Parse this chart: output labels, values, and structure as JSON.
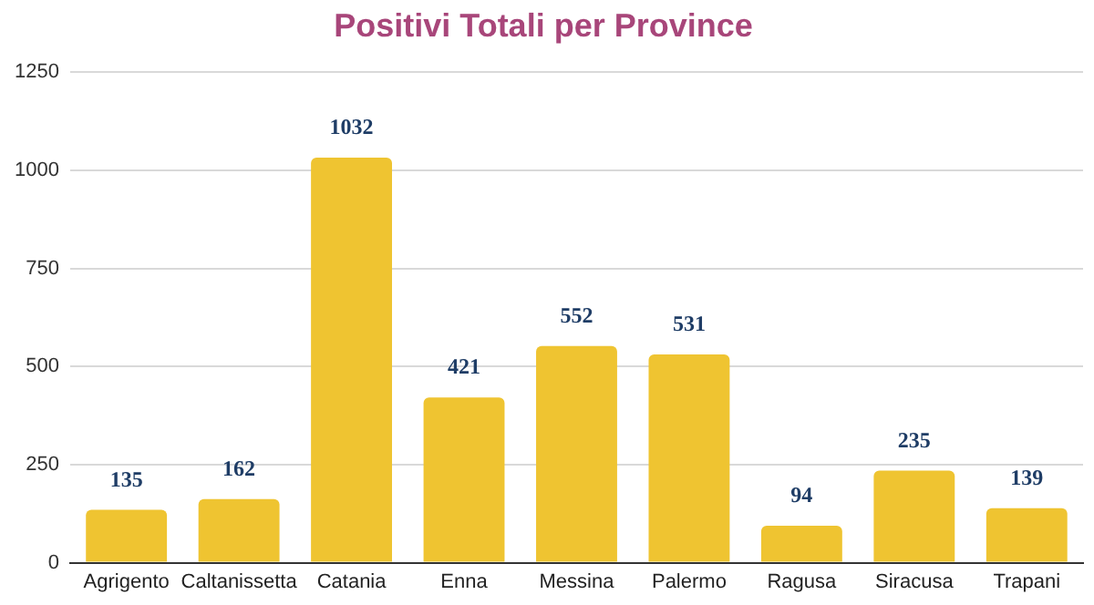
{
  "chart_data": {
    "type": "bar",
    "title": "Positivi Totali per Province",
    "categories": [
      "Agrigento",
      "Caltanissetta",
      "Catania",
      "Enna",
      "Messina",
      "Palermo",
      "Ragusa",
      "Siracusa",
      "Trapani"
    ],
    "values": [
      135,
      162,
      1032,
      421,
      552,
      531,
      94,
      235,
      139
    ],
    "color": "#efc431",
    "ylim": [
      0,
      1250
    ],
    "yticks": [
      0,
      250,
      500,
      750,
      1000,
      1250
    ],
    "grid": "y",
    "data_labels": true
  }
}
